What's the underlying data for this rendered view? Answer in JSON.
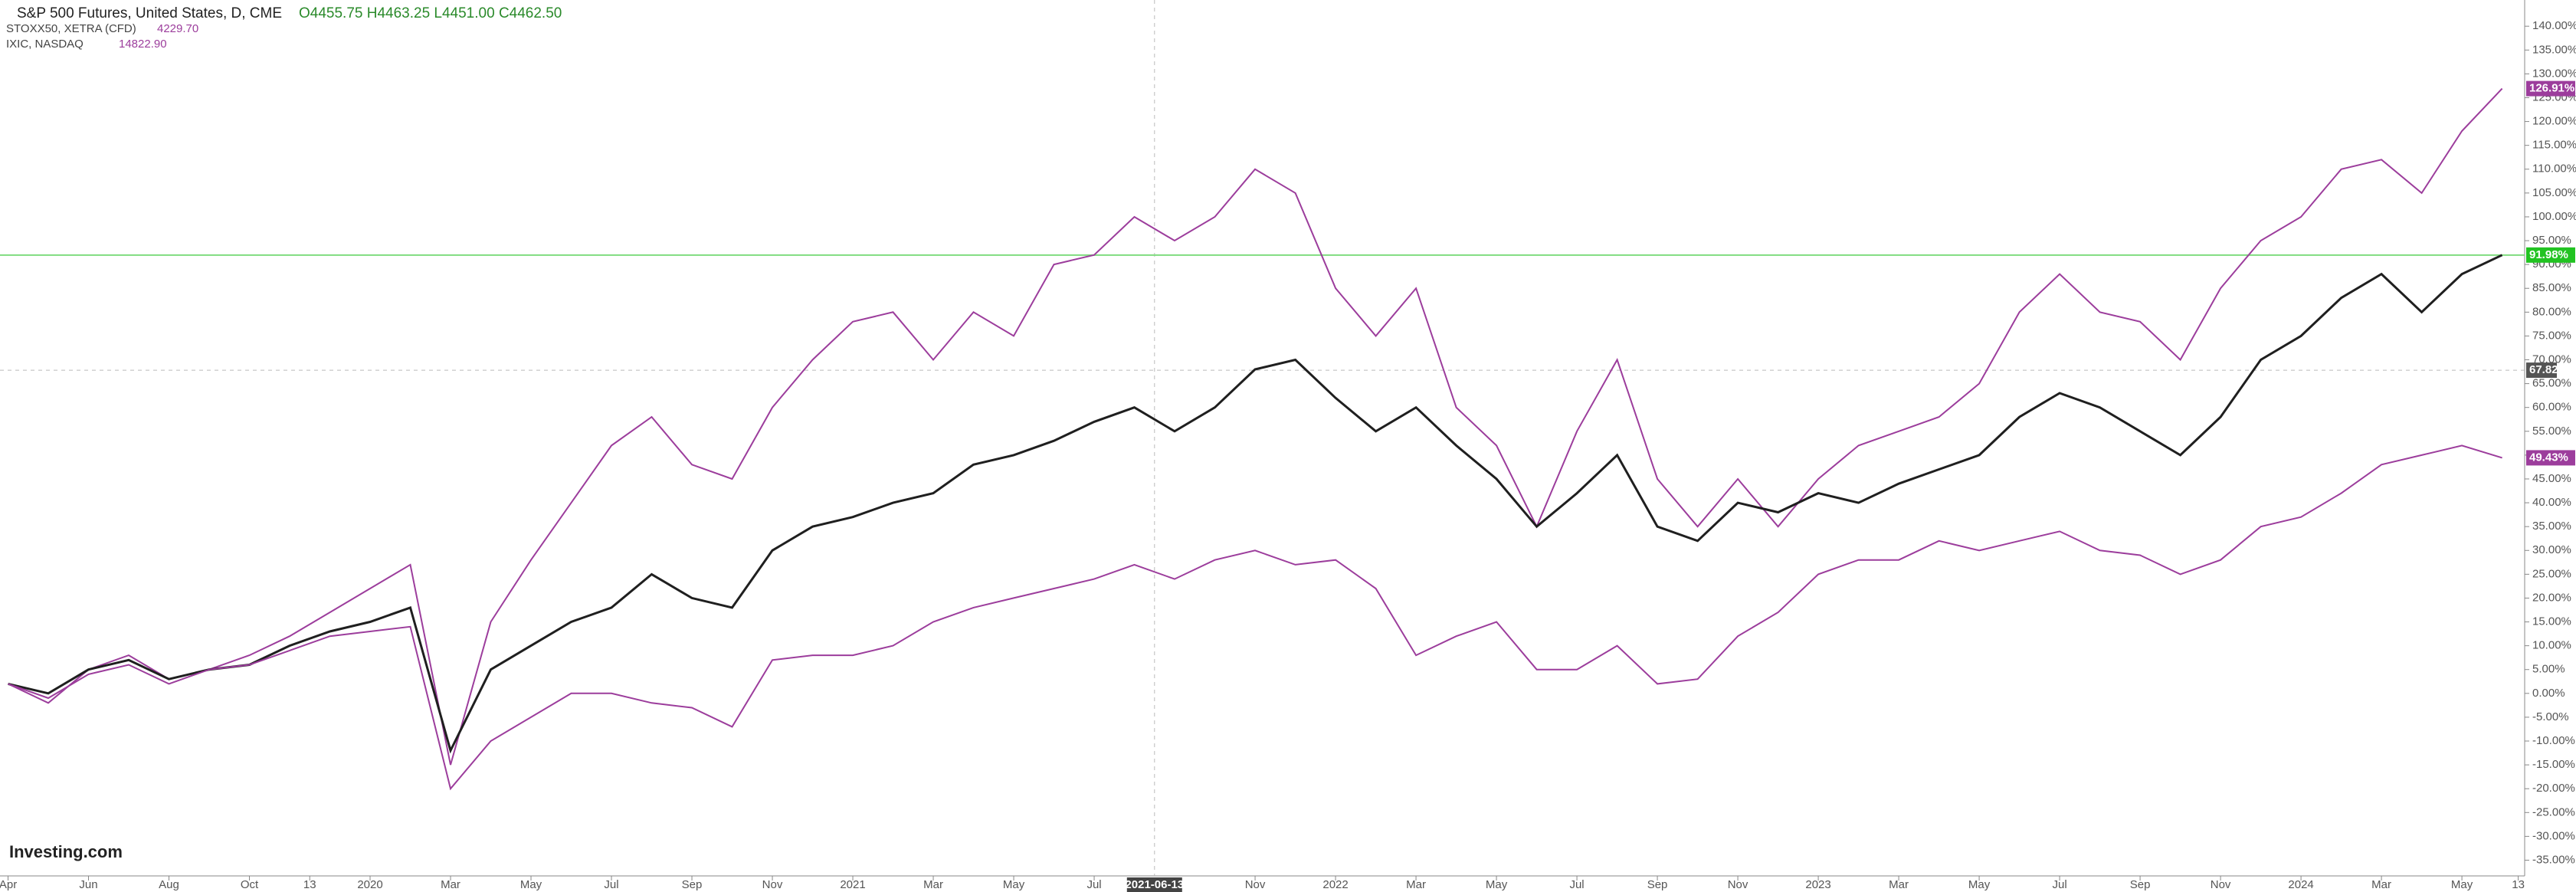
{
  "chart_data": {
    "type": "line",
    "header": {
      "title": "S&P 500 Futures, United States, D, CME",
      "ohlc": "O4455.75  H4463.25  L4451.00  C4462.50",
      "compare": [
        {
          "name": "STOXX50, XETRA (CFD)",
          "price": "4229.70"
        },
        {
          "name": "IXIC, NASDAQ",
          "price": "14822.90"
        }
      ]
    },
    "logo": "Investing.com",
    "xlim": [
      -0.2,
      62.56
    ],
    "ylim": [
      -38.3,
      145.5
    ],
    "x": [
      0,
      1,
      2,
      3,
      4,
      5,
      6,
      7,
      8,
      9,
      10,
      11,
      12,
      13,
      14,
      15,
      16,
      17,
      18,
      19,
      20,
      21,
      22,
      23,
      24,
      25,
      26,
      27,
      28,
      29,
      30,
      31,
      32,
      33,
      34,
      35,
      36,
      37,
      38,
      39,
      40,
      41,
      42,
      43,
      44,
      45,
      46,
      47,
      48,
      49,
      50,
      51,
      52,
      53,
      54,
      55,
      56,
      57,
      58,
      59,
      60,
      61,
      62
    ],
    "series": [
      {
        "name": "IXIC, NASDAQ",
        "color": "#9c3d9c",
        "values": [
          2,
          -2,
          5,
          8,
          3,
          5,
          8,
          12,
          17,
          22,
          27,
          -15,
          15,
          28,
          40,
          52,
          58,
          48,
          45,
          60,
          70,
          78,
          80,
          70,
          80,
          75,
          90,
          92,
          100,
          95,
          100,
          110,
          105,
          85,
          75,
          85,
          60,
          52,
          35,
          55,
          70,
          45,
          35,
          45,
          35,
          45,
          52,
          55,
          58,
          65,
          80,
          88,
          80,
          78,
          70,
          85,
          95,
          100,
          110,
          112,
          105,
          118,
          126.91
        ],
        "last_label": "126.91%"
      },
      {
        "name": "S&P 500 Futures",
        "color": "#1f1f1f",
        "values": [
          2,
          0,
          5,
          7,
          3,
          5,
          6,
          10,
          13,
          15,
          18,
          -12,
          5,
          10,
          15,
          18,
          25,
          20,
          18,
          30,
          35,
          37,
          40,
          42,
          48,
          50,
          53,
          57,
          60,
          55,
          60,
          68,
          70,
          62,
          55,
          60,
          52,
          45,
          35,
          42,
          50,
          35,
          32,
          40,
          38,
          42,
          40,
          44,
          47,
          50,
          58,
          63,
          60,
          55,
          50,
          58,
          70,
          75,
          83,
          88,
          80,
          88,
          91.98
        ],
        "last_label": "91.98%",
        "label_color": "#22c322"
      },
      {
        "name": "STOXX50, XETRA (CFD)",
        "color": "#9c3d9c",
        "values": [
          2,
          -1,
          4,
          6,
          2,
          5,
          6,
          9,
          12,
          13,
          14,
          -20,
          -10,
          -5,
          0,
          0,
          -2,
          -3,
          -7,
          7,
          8,
          8,
          10,
          15,
          18,
          20,
          22,
          24,
          27,
          24,
          28,
          30,
          27,
          28,
          22,
          8,
          12,
          15,
          5,
          5,
          10,
          2,
          3,
          12,
          17,
          25,
          28,
          28,
          32,
          30,
          32,
          34,
          30,
          29,
          25,
          28,
          35,
          37,
          42,
          48,
          50,
          52,
          49.43
        ],
        "last_label": "49.43%"
      }
    ],
    "price_line": {
      "value": 91.98,
      "color": "#7fdc7f"
    },
    "crosshair": {
      "x": 28.5,
      "x_label": "2021-06-13",
      "y": 67.82,
      "y_label": "67.82"
    },
    "xticks": [
      {
        "value": 0,
        "label": "Apr"
      },
      {
        "value": 2,
        "label": "Jun"
      },
      {
        "value": 4,
        "label": "Aug"
      },
      {
        "value": 6,
        "label": "Oct"
      },
      {
        "value": 7.5,
        "label": "13"
      },
      {
        "value": 9,
        "label": "2020"
      },
      {
        "value": 11,
        "label": "Mar"
      },
      {
        "value": 13,
        "label": "May"
      },
      {
        "value": 15,
        "label": "Jul"
      },
      {
        "value": 17,
        "label": "Sep"
      },
      {
        "value": 19,
        "label": "Nov"
      },
      {
        "value": 21,
        "label": "2021"
      },
      {
        "value": 23,
        "label": "Mar"
      },
      {
        "value": 25,
        "label": "May"
      },
      {
        "value": 27,
        "label": "Jul"
      },
      {
        "value": 31,
        "label": "Nov"
      },
      {
        "value": 33,
        "label": "2022"
      },
      {
        "value": 35,
        "label": "Mar"
      },
      {
        "value": 37,
        "label": "May"
      },
      {
        "value": 39,
        "label": "Jul"
      },
      {
        "value": 41,
        "label": "Sep"
      },
      {
        "value": 43,
        "label": "Nov"
      },
      {
        "value": 45,
        "label": "2023"
      },
      {
        "value": 47,
        "label": "Mar"
      },
      {
        "value": 49,
        "label": "May"
      },
      {
        "value": 51,
        "label": "Jul"
      },
      {
        "value": 53,
        "label": "Sep"
      },
      {
        "value": 55,
        "label": "Nov"
      },
      {
        "value": 57,
        "label": "2024"
      },
      {
        "value": 59,
        "label": "Mar"
      },
      {
        "value": 61,
        "label": "May"
      },
      {
        "value": 62.4,
        "label": "13"
      }
    ],
    "yticks": [
      {
        "value": 140,
        "label": "140.00%"
      },
      {
        "value": 135,
        "label": "135.00%"
      },
      {
        "value": 130,
        "label": "130.00%"
      },
      {
        "value": 125,
        "label": "125.00%"
      },
      {
        "value": 120,
        "label": "120.00%"
      },
      {
        "value": 115,
        "label": "115.00%"
      },
      {
        "value": 110,
        "label": "110.00%"
      },
      {
        "value": 105,
        "label": "105.00%"
      },
      {
        "value": 100,
        "label": "100.00%"
      },
      {
        "value": 95,
        "label": "95.00%"
      },
      {
        "value": 90,
        "label": "90.00%"
      },
      {
        "value": 85,
        "label": "85.00%"
      },
      {
        "value": 80,
        "label": "80.00%"
      },
      {
        "value": 75,
        "label": "75.00%"
      },
      {
        "value": 70,
        "label": "70.00%"
      },
      {
        "value": 65,
        "label": "65.00%"
      },
      {
        "value": 60,
        "label": "60.00%"
      },
      {
        "value": 55,
        "label": "55.00%"
      },
      {
        "value": 50,
        "label": "50.00%"
      },
      {
        "value": 45,
        "label": "45.00%"
      },
      {
        "value": 40,
        "label": "40.00%"
      },
      {
        "value": 35,
        "label": "35.00%"
      },
      {
        "value": 30,
        "label": "30.00%"
      },
      {
        "value": 25,
        "label": "25.00%"
      },
      {
        "value": 20,
        "label": "20.00%"
      },
      {
        "value": 15,
        "label": "15.00%"
      },
      {
        "value": 10,
        "label": "10.00%"
      },
      {
        "value": 5,
        "label": "5.00%"
      },
      {
        "value": 0,
        "label": "0.00%"
      },
      {
        "value": -5,
        "label": "-5.00%"
      },
      {
        "value": -10,
        "label": "-10.00%"
      },
      {
        "value": -15,
        "label": "-15.00%"
      },
      {
        "value": -20,
        "label": "-20.00%"
      },
      {
        "value": -25,
        "label": "-25.00%"
      },
      {
        "value": -30,
        "label": "-30.00%"
      },
      {
        "value": -35,
        "label": "-35.00%"
      }
    ]
  }
}
